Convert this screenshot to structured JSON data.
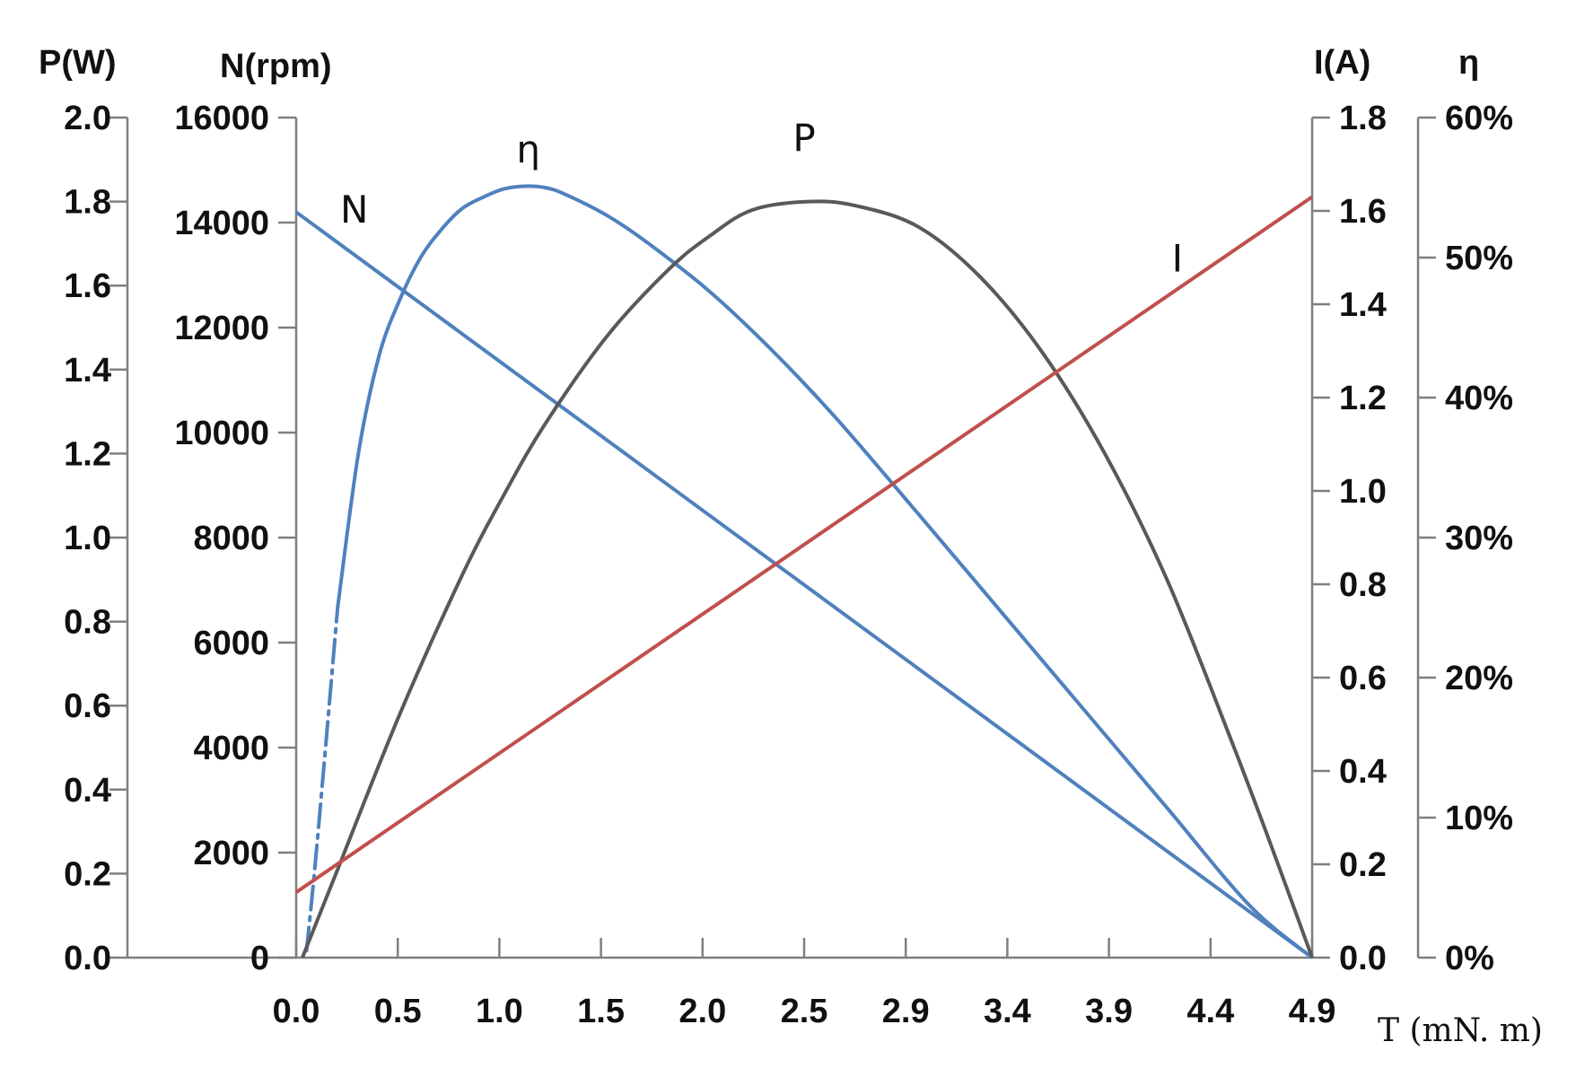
{
  "chart_data": {
    "type": "line",
    "x": {
      "title": "T (mN. m)",
      "unit": "mN.m",
      "range": [
        0,
        4.9
      ],
      "tick_labels": [
        "0.0",
        "0.5",
        "1.0",
        "1.5",
        "2.0",
        "2.5",
        "2.9",
        "3.4",
        "3.9",
        "4.4",
        "4.9"
      ]
    },
    "axes": {
      "P": {
        "title": "P(W)",
        "range": [
          0,
          2.0
        ],
        "tick_labels": [
          "0.0",
          "0.2",
          "0.4",
          "0.6",
          "0.8",
          "1.0",
          "1.2",
          "1.4",
          "1.6",
          "1.8",
          "2.0"
        ]
      },
      "N": {
        "title": "N(rpm)",
        "range": [
          0,
          16000
        ],
        "tick_labels": [
          "0",
          "2000",
          "4000",
          "6000",
          "8000",
          "10000",
          "12000",
          "14000",
          "16000"
        ]
      },
      "I": {
        "title": "I(A)",
        "range": [
          0,
          1.8
        ],
        "tick_labels": [
          "0.0",
          "0.2",
          "0.4",
          "0.6",
          "0.8",
          "1.0",
          "1.2",
          "1.4",
          "1.6",
          "1.8"
        ]
      },
      "eta": {
        "title": "η",
        "range": [
          0,
          60
        ],
        "unit": "%",
        "tick_labels": [
          "0%",
          "10%",
          "20%",
          "30%",
          "40%",
          "50%",
          "60%"
        ]
      }
    },
    "series": [
      {
        "name": "N",
        "axis": "N",
        "color": "#4f81bd",
        "x": [
          0.0,
          4.9
        ],
        "y": [
          14200,
          0
        ]
      },
      {
        "name": "η",
        "axis": "eta",
        "color": "#4f81bd",
        "x": [
          0.05,
          0.1,
          0.2,
          0.3,
          0.4,
          0.5,
          0.6,
          0.7,
          0.8,
          0.9,
          1.0,
          1.1,
          1.2,
          1.3,
          1.5,
          1.7,
          2.0,
          2.3,
          2.6,
          3.0,
          3.4,
          3.8,
          4.2,
          4.6,
          4.9
        ],
        "y": [
          0.5,
          8,
          25,
          36,
          43,
          47,
          50,
          52,
          53.5,
          54.3,
          54.9,
          55.1,
          55.0,
          54.5,
          53.0,
          51.0,
          47.5,
          43.3,
          38.6,
          31.7,
          24.7,
          17.7,
          10.7,
          3.7,
          0
        ],
        "dashed_range": [
          0.05,
          0.2
        ]
      },
      {
        "name": "P",
        "axis": "P",
        "color": "#595959",
        "x": [
          0.03,
          0.2,
          0.5,
          0.8,
          1.0,
          1.2,
          1.5,
          1.8,
          2.0,
          2.2,
          2.47,
          2.7,
          3.0,
          3.3,
          3.6,
          3.9,
          4.2,
          4.5,
          4.7,
          4.9
        ],
        "y": [
          0,
          0.21,
          0.58,
          0.91,
          1.1,
          1.27,
          1.48,
          1.64,
          1.72,
          1.78,
          1.8,
          1.79,
          1.74,
          1.62,
          1.44,
          1.2,
          0.9,
          0.53,
          0.27,
          0
        ]
      },
      {
        "name": "I",
        "axis": "I",
        "color": "#c0504d",
        "x": [
          0.0,
          4.9
        ],
        "y": [
          0.14,
          1.63
        ]
      }
    ],
    "curve_labels": [
      {
        "text": "N",
        "x": 0.28,
        "y_axis": "N",
        "y": 14000
      },
      {
        "text": "η",
        "x": 1.12,
        "y_axis": "eta",
        "y": 56.8
      },
      {
        "text": "P",
        "x": 2.45,
        "y_axis": "P",
        "y": 1.92
      },
      {
        "text": "I",
        "x": 4.25,
        "y_axis": "I",
        "y": 1.47
      }
    ],
    "grid": false,
    "legend": "none"
  }
}
